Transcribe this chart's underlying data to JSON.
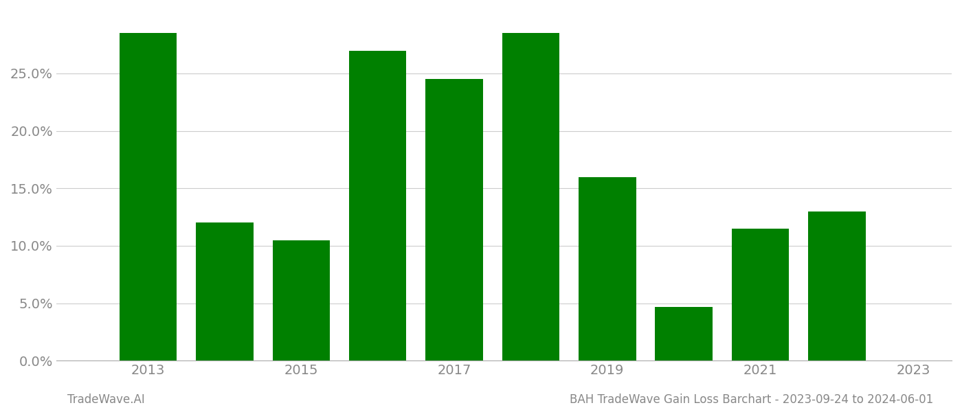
{
  "years": [
    2013,
    2014,
    2015,
    2016,
    2017,
    2018,
    2019,
    2020,
    2021,
    2022
  ],
  "values": [
    0.285,
    0.12,
    0.105,
    0.27,
    0.245,
    0.285,
    0.16,
    0.047,
    0.115,
    0.13
  ],
  "bar_color": "#008000",
  "xtick_labels": [
    "2013",
    "2015",
    "2017",
    "2019",
    "2021",
    "2023"
  ],
  "xtick_positions": [
    2013,
    2015,
    2017,
    2019,
    2021,
    2023
  ],
  "ytick_labels": [
    "0.0%",
    "5.0%",
    "10.0%",
    "15.0%",
    "20.0%",
    "25.0%"
  ],
  "ytick_values": [
    0.0,
    0.05,
    0.1,
    0.15,
    0.2,
    0.25
  ],
  "ylim": [
    0,
    0.305
  ],
  "xlim": [
    2011.8,
    2023.5
  ],
  "footer_left": "TradeWave.AI",
  "footer_right": "BAH TradeWave Gain Loss Barchart - 2023-09-24 to 2024-06-01",
  "background_color": "#ffffff",
  "grid_color": "#cccccc",
  "tick_label_color": "#888888",
  "footer_color": "#888888",
  "bar_width": 0.75,
  "tick_fontsize": 14,
  "footer_fontsize": 12
}
